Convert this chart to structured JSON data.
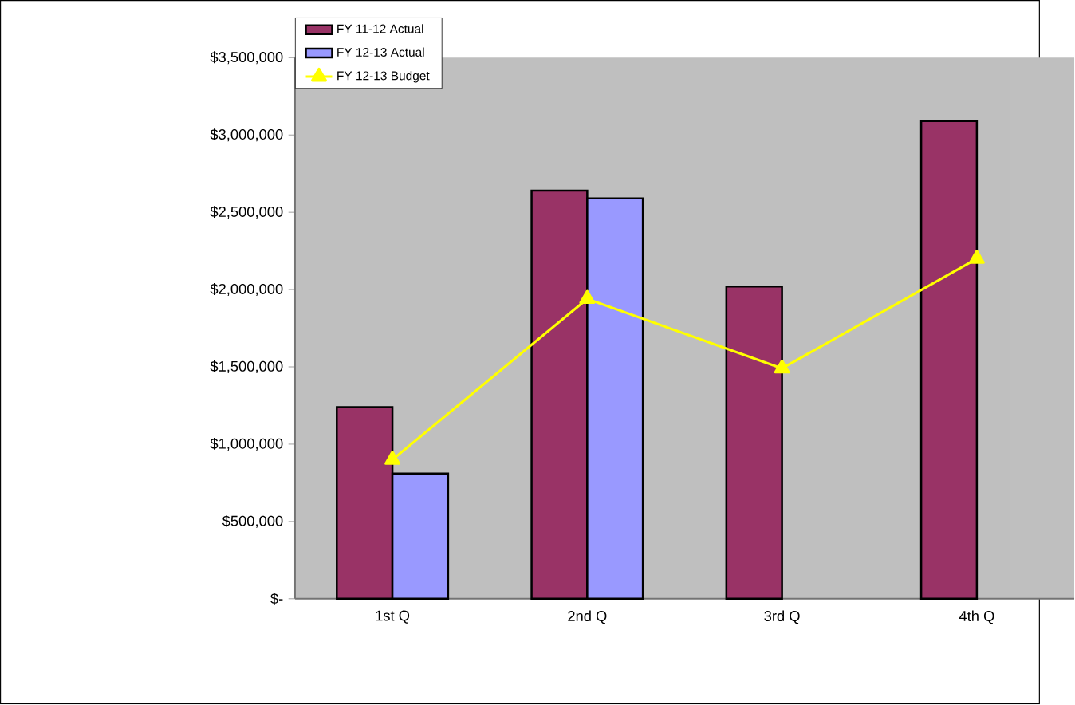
{
  "chart_data": {
    "type": "bar",
    "categories": [
      "1st Q",
      "2nd Q",
      "3rd Q",
      "4th Q"
    ],
    "series": [
      {
        "name": "FY 11-12 Actual",
        "color": "#993366",
        "values": [
          1240000,
          2640000,
          2020000,
          3090000
        ]
      },
      {
        "name": "FY 12-13 Actual",
        "color": "#9999ff",
        "values": [
          810000,
          2590000,
          null,
          null
        ]
      },
      {
        "name": "FY 12-13 Budget",
        "type": "line",
        "color": "#ffff00",
        "marker": "triangle",
        "values": [
          900000,
          1940000,
          1490000,
          2200000
        ]
      }
    ],
    "ylim": [
      0,
      3500000
    ],
    "yticks": [
      {
        "value": 0,
        "label": "$-"
      },
      {
        "value": 500000,
        "label": "$500,000"
      },
      {
        "value": 1000000,
        "label": "$1,000,000"
      },
      {
        "value": 1500000,
        "label": "$1,500,000"
      },
      {
        "value": 2000000,
        "label": "$2,000,000"
      },
      {
        "value": 2500000,
        "label": "$2,500,000"
      },
      {
        "value": 3000000,
        "label": "$3,000,000"
      },
      {
        "value": 3500000,
        "label": "$3,500,000"
      }
    ],
    "grid": false,
    "legend": "top left"
  }
}
